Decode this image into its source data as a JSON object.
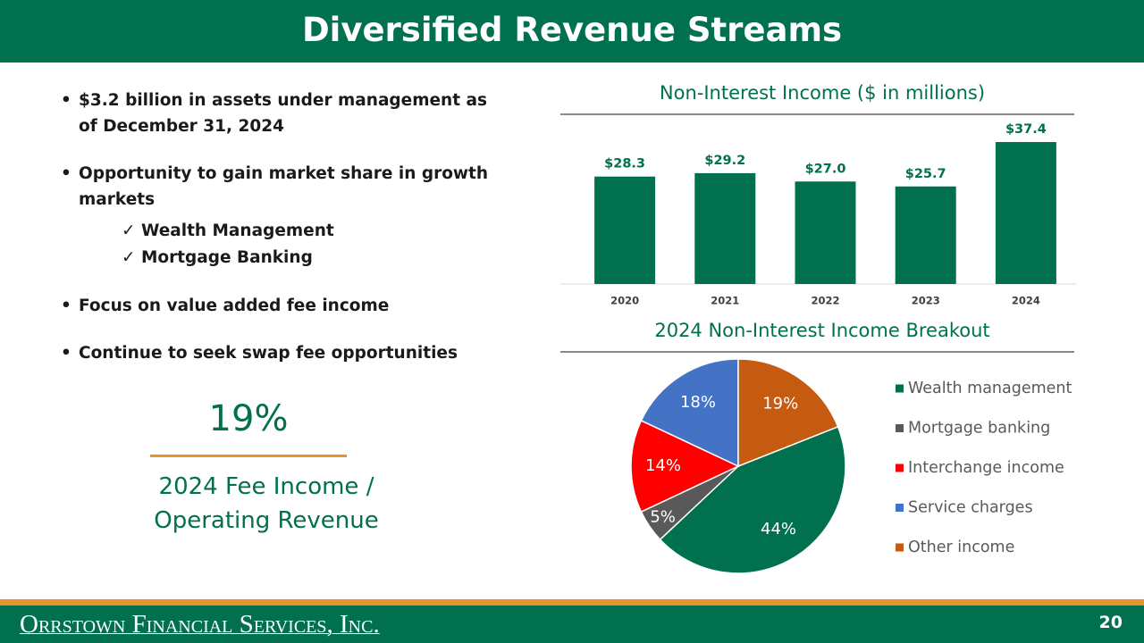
{
  "header": {
    "title": "Diversified Revenue Streams"
  },
  "bullets": [
    {
      "text": "$3.2 billion in assets under management as of December 31, 2024"
    },
    {
      "text": "Opportunity to gain market share in growth markets",
      "checks": [
        "Wealth Management",
        "Mortgage Banking"
      ]
    },
    {
      "text": "Focus on value added fee income"
    },
    {
      "text": "Continue to seek swap fee opportunities"
    }
  ],
  "highlight": {
    "value": "19%",
    "caption": "2024 Fee Income / Operating Revenue"
  },
  "chart_data": [
    {
      "type": "bar",
      "title": "Non-Interest Income ($ in millions)",
      "categories": [
        "2020",
        "2021",
        "2022",
        "2023",
        "2024"
      ],
      "values": [
        28.3,
        29.2,
        27.0,
        25.7,
        37.4
      ],
      "value_labels": [
        "$28.3",
        "$29.2",
        "$27.0",
        "$25.7",
        "$37.4"
      ],
      "color": "#00704f",
      "ylim": [
        0,
        40
      ],
      "grid": false
    },
    {
      "type": "pie",
      "title": "2024 Non-Interest Income Breakout",
      "categories": [
        "Wealth management",
        "Mortgage banking",
        "Interchange income",
        "Service charges",
        "Other income"
      ],
      "values": [
        44,
        5,
        14,
        18,
        19
      ],
      "value_labels": [
        "44%",
        "5%",
        "14%",
        "18%",
        "19%"
      ],
      "colors": [
        "#00704f",
        "#595959",
        "#ff0000",
        "#4472c4",
        "#c55a11"
      ],
      "legend": "right"
    }
  ],
  "footer": {
    "company": "Orrstown Financial Services, Inc.",
    "page": "20"
  }
}
